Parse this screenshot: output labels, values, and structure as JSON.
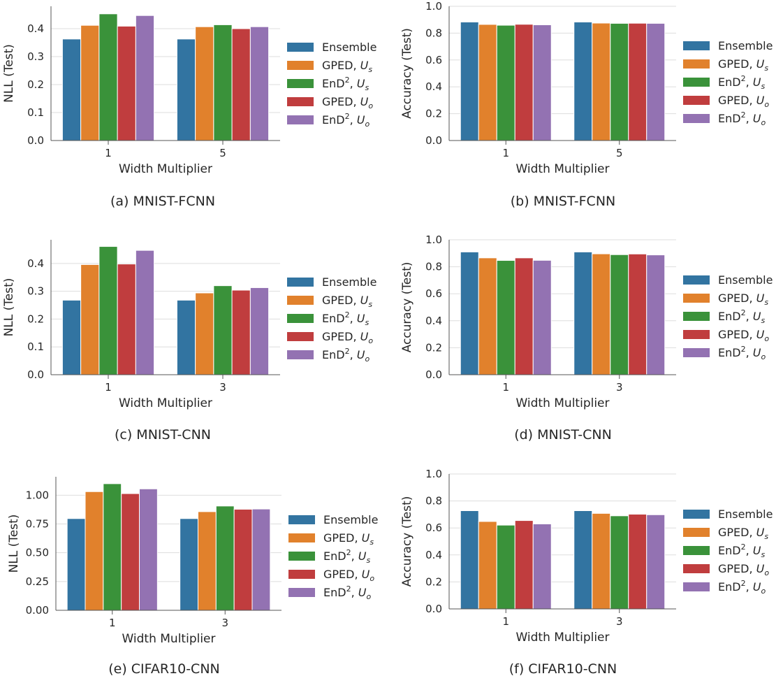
{
  "figure": {
    "series_colors": [
      "#3274a1",
      "#e1812c",
      "#3a923a",
      "#c03d3e",
      "#9372b2"
    ],
    "legend_entries": [
      {
        "base": "Ensemble",
        "sup": "",
        "var": "",
        "sub": ""
      },
      {
        "base": "GPED, ",
        "sup": "",
        "var": "U",
        "sub": "s"
      },
      {
        "base": "EnD",
        "sup": "2",
        "var": "U",
        "sub": "s"
      },
      {
        "base": "GPED, ",
        "sup": "",
        "var": "U",
        "sub": "o"
      },
      {
        "base": "EnD",
        "sup": "2",
        "var": "U",
        "sub": "o"
      }
    ]
  },
  "chart_data": [
    {
      "type": "bar",
      "caption": "(a) MNIST-FCNN",
      "xlabel": "Width Multiplier",
      "ylabel": "NLL (Test)",
      "categories": [
        "1",
        "5"
      ],
      "ylim": [
        0,
        0.48
      ],
      "yticks": [
        "0.0",
        "0.1",
        "0.2",
        "0.3",
        "0.4"
      ],
      "series": [
        {
          "values": [
            0.363,
            0.363
          ]
        },
        {
          "values": [
            0.412,
            0.407
          ]
        },
        {
          "values": [
            0.453,
            0.414
          ]
        },
        {
          "values": [
            0.409,
            0.4
          ]
        },
        {
          "values": [
            0.447,
            0.407
          ]
        }
      ]
    },
    {
      "type": "bar",
      "caption": "(b) MNIST-FCNN",
      "xlabel": "Width Multiplier",
      "ylabel": "Accuracy (Test)",
      "categories": [
        "1",
        "5"
      ],
      "ylim": [
        0,
        1.0
      ],
      "yticks": [
        "0.0",
        "0.2",
        "0.4",
        "0.6",
        "0.8",
        "1.0"
      ],
      "series": [
        {
          "values": [
            0.883,
            0.883
          ]
        },
        {
          "values": [
            0.865,
            0.875
          ]
        },
        {
          "values": [
            0.859,
            0.873
          ]
        },
        {
          "values": [
            0.866,
            0.874
          ]
        },
        {
          "values": [
            0.862,
            0.873
          ]
        }
      ]
    },
    {
      "type": "bar",
      "caption": "(c) MNIST-CNN",
      "xlabel": "Width Multiplier",
      "ylabel": "NLL (Test)",
      "categories": [
        "1",
        "3"
      ],
      "ylim": [
        0,
        0.485
      ],
      "yticks": [
        "0.0",
        "0.1",
        "0.2",
        "0.3",
        "0.4"
      ],
      "series": [
        {
          "values": [
            0.268,
            0.268
          ]
        },
        {
          "values": [
            0.396,
            0.294
          ]
        },
        {
          "values": [
            0.461,
            0.32
          ]
        },
        {
          "values": [
            0.398,
            0.304
          ]
        },
        {
          "values": [
            0.447,
            0.313
          ]
        }
      ]
    },
    {
      "type": "bar",
      "caption": "(d) MNIST-CNN",
      "xlabel": "Width Multiplier",
      "ylabel": "Accuracy (Test)",
      "categories": [
        "1",
        "3"
      ],
      "ylim": [
        0,
        1.0
      ],
      "yticks": [
        "0.0",
        "0.2",
        "0.4",
        "0.6",
        "0.8",
        "1.0"
      ],
      "series": [
        {
          "values": [
            0.91,
            0.91
          ]
        },
        {
          "values": [
            0.866,
            0.896
          ]
        },
        {
          "values": [
            0.847,
            0.89
          ]
        },
        {
          "values": [
            0.866,
            0.895
          ]
        },
        {
          "values": [
            0.848,
            0.888
          ]
        }
      ]
    },
    {
      "type": "bar",
      "caption": "(e) CIFAR10-CNN",
      "xlabel": "Width Multiplier",
      "ylabel": "NLL (Test)",
      "categories": [
        "1",
        "3"
      ],
      "ylim": [
        0,
        1.16
      ],
      "yticks": [
        "0.00",
        "0.25",
        "0.50",
        "0.75",
        "1.00"
      ],
      "series": [
        {
          "values": [
            0.797,
            0.797
          ]
        },
        {
          "values": [
            1.031,
            0.857
          ]
        },
        {
          "values": [
            1.1,
            0.906
          ]
        },
        {
          "values": [
            1.014,
            0.878
          ]
        },
        {
          "values": [
            1.055,
            0.88
          ]
        }
      ]
    },
    {
      "type": "bar",
      "caption": "(f) CIFAR10-CNN",
      "xlabel": "Width Multiplier",
      "ylabel": "Accuracy (Test)",
      "categories": [
        "1",
        "3"
      ],
      "ylim": [
        0,
        1.0
      ],
      "yticks": [
        "0.0",
        "0.2",
        "0.4",
        "0.6",
        "0.8",
        "1.0"
      ],
      "series": [
        {
          "values": [
            0.728,
            0.728
          ]
        },
        {
          "values": [
            0.648,
            0.708
          ]
        },
        {
          "values": [
            0.621,
            0.69
          ]
        },
        {
          "values": [
            0.655,
            0.702
          ]
        },
        {
          "values": [
            0.63,
            0.698
          ]
        }
      ]
    }
  ]
}
